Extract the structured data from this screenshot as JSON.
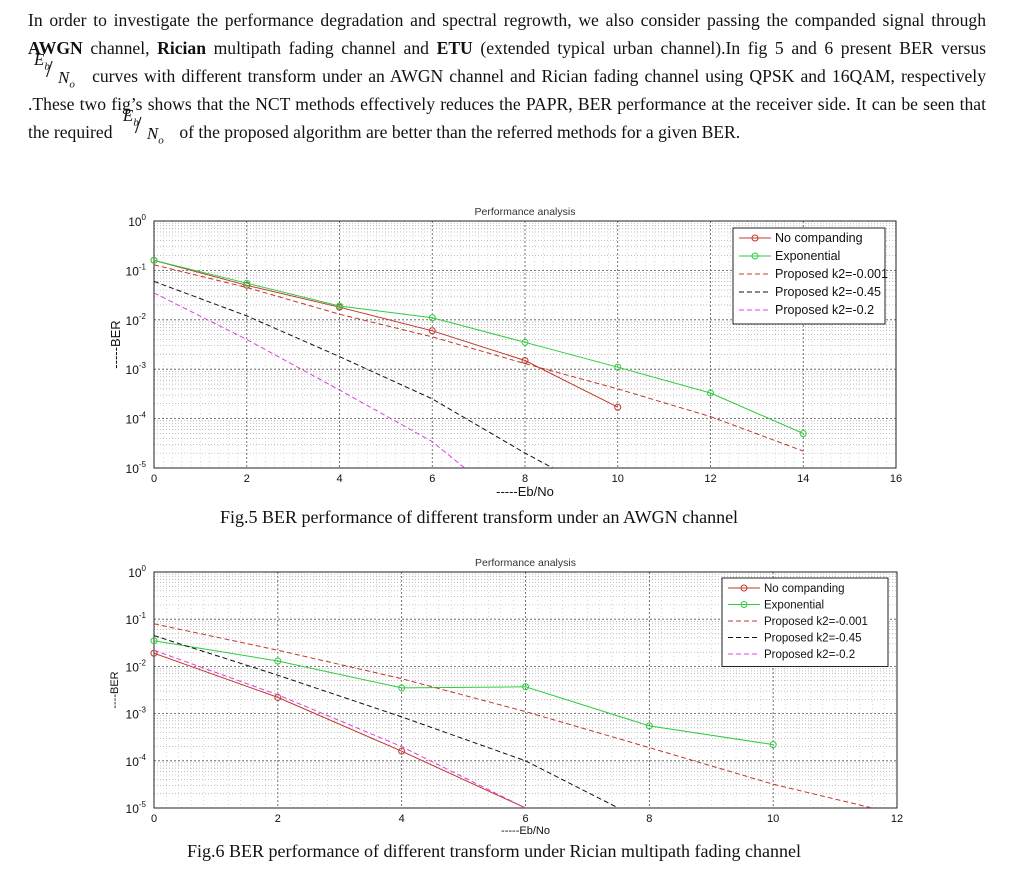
{
  "paragraph": {
    "s1": "In order to investigate the performance degradation and spectral regrowth, we also consider passing the companded signal through",
    "b1": "AWGN",
    "s2": "channel,",
    "b2": "Rician",
    "s3": "multipath fading channel and",
    "b3": "ETU",
    "s4": "(extended typical urban channel).In fig 5 and 6 present BER versus",
    "s5": "curves with different transform under an AWGN channel and Rician fading channel using QPSK and 16QAM, respectively .These two fig’s shows that the NCT methods effectively reduces the PAPR, BER performance at the receiver side. It can be seen that the required",
    "s6": "of the proposed algorithm are better than the referred methods for a given BER.",
    "frac_num": "E",
    "frac_num_sub": "b",
    "frac_den": "N",
    "frac_den_sub": "o"
  },
  "colors": {
    "no_companding": "#c0392b",
    "exponential": "#2ecc40",
    "k2_0001": "#c0392b",
    "k2_045": "#111111",
    "k2_02": "#e040e0"
  },
  "chart_data": [
    {
      "type": "line",
      "title": "Performance analysis",
      "xlabel": "-----Eb/No",
      "ylabel": "-----BER",
      "xlim": [
        0,
        16
      ],
      "ylim": [
        1e-05,
        1
      ],
      "yscale": "log",
      "xticks": [
        "0",
        "2",
        "4",
        "6",
        "8",
        "10",
        "12",
        "14",
        "16"
      ],
      "yticks": [
        {
          "base": "10",
          "exp": "0"
        },
        {
          "base": "10",
          "exp": "-1"
        },
        {
          "base": "10",
          "exp": "-2"
        },
        {
          "base": "10",
          "exp": "-3"
        },
        {
          "base": "10",
          "exp": "-4"
        },
        {
          "base": "10",
          "exp": "-5"
        }
      ],
      "legend_position": "top-right",
      "series": [
        {
          "name": "No companding",
          "style": "solid-marker",
          "color": "#c0392b",
          "x": [
            0,
            2,
            4,
            6,
            8,
            10
          ],
          "y": [
            0.16,
            0.05,
            0.018,
            0.006,
            0.0015,
            0.00017
          ]
        },
        {
          "name": "Exponential",
          "style": "solid-marker",
          "color": "#2ecc40",
          "x": [
            0,
            2,
            4,
            6,
            8,
            10,
            12,
            14
          ],
          "y": [
            0.16,
            0.055,
            0.019,
            0.011,
            0.0035,
            0.0011,
            0.00033,
            5e-05
          ]
        },
        {
          "name": "Proposed k2=-0.001",
          "style": "dashed",
          "color": "#c0392b",
          "x": [
            0,
            2,
            4,
            6,
            8,
            10,
            12,
            14
          ],
          "y": [
            0.13,
            0.045,
            0.013,
            0.0045,
            0.0013,
            0.0004,
            0.00011,
            2.2e-05
          ]
        },
        {
          "name": "Proposed k2=-0.45",
          "style": "dashed",
          "color": "#111111",
          "x": [
            0,
            2,
            4,
            6,
            8,
            8.6
          ],
          "y": [
            0.06,
            0.012,
            0.0018,
            0.00025,
            2e-05,
            1e-05
          ]
        },
        {
          "name": "Proposed k2=-0.2",
          "style": "dashed",
          "color": "#e040e0",
          "x": [
            0,
            2,
            4,
            6,
            6.7
          ],
          "y": [
            0.035,
            0.004,
            0.00038,
            3.4e-05,
            1e-05
          ]
        }
      ],
      "caption": "Fig.5 BER performance of different transform under an AWGN channel"
    },
    {
      "type": "line",
      "title": "Performance analysis",
      "xlabel": "-----Eb/No",
      "ylabel": "----BER",
      "xlim": [
        0,
        12
      ],
      "ylim": [
        1e-05,
        1
      ],
      "yscale": "log",
      "xticks": [
        "0",
        "2",
        "4",
        "6",
        "8",
        "10",
        "12"
      ],
      "yticks": [
        {
          "base": "10",
          "exp": "0"
        },
        {
          "base": "10",
          "exp": "-1"
        },
        {
          "base": "10",
          "exp": "-2"
        },
        {
          "base": "10",
          "exp": "-3"
        },
        {
          "base": "10",
          "exp": "-4"
        },
        {
          "base": "10",
          "exp": "-5"
        }
      ],
      "legend_position": "top-right",
      "series": [
        {
          "name": "No companding",
          "style": "solid-marker",
          "color": "#c0392b",
          "x": [
            0,
            2,
            4,
            6
          ],
          "y": [
            0.019,
            0.0022,
            0.00016,
            1e-05
          ]
        },
        {
          "name": "Exponential",
          "style": "solid-marker",
          "color": "#2ecc40",
          "x": [
            0,
            2,
            4,
            6,
            8,
            10
          ],
          "y": [
            0.035,
            0.013,
            0.0035,
            0.0037,
            0.00055,
            0.00022
          ]
        },
        {
          "name": "Proposed k2=-0.001",
          "style": "dashed",
          "color": "#c0392b",
          "x": [
            0,
            2,
            4,
            6,
            8,
            10,
            11.6
          ],
          "y": [
            0.08,
            0.022,
            0.0055,
            0.0011,
            0.00019,
            3.2e-05,
            1e-05
          ]
        },
        {
          "name": "Proposed k2=-0.45",
          "style": "dashed",
          "color": "#111111",
          "x": [
            0,
            2,
            4,
            6,
            7.5
          ],
          "y": [
            0.045,
            0.0065,
            0.00085,
            0.0001,
            1e-05
          ]
        },
        {
          "name": "Proposed k2=-0.2",
          "style": "dashed",
          "color": "#e040e0",
          "x": [
            0,
            2,
            4,
            6
          ],
          "y": [
            0.022,
            0.0025,
            0.0002,
            1e-05
          ]
        }
      ],
      "caption": "Fig.6 BER performance of different transform under Rician multipath fading   channel"
    }
  ]
}
